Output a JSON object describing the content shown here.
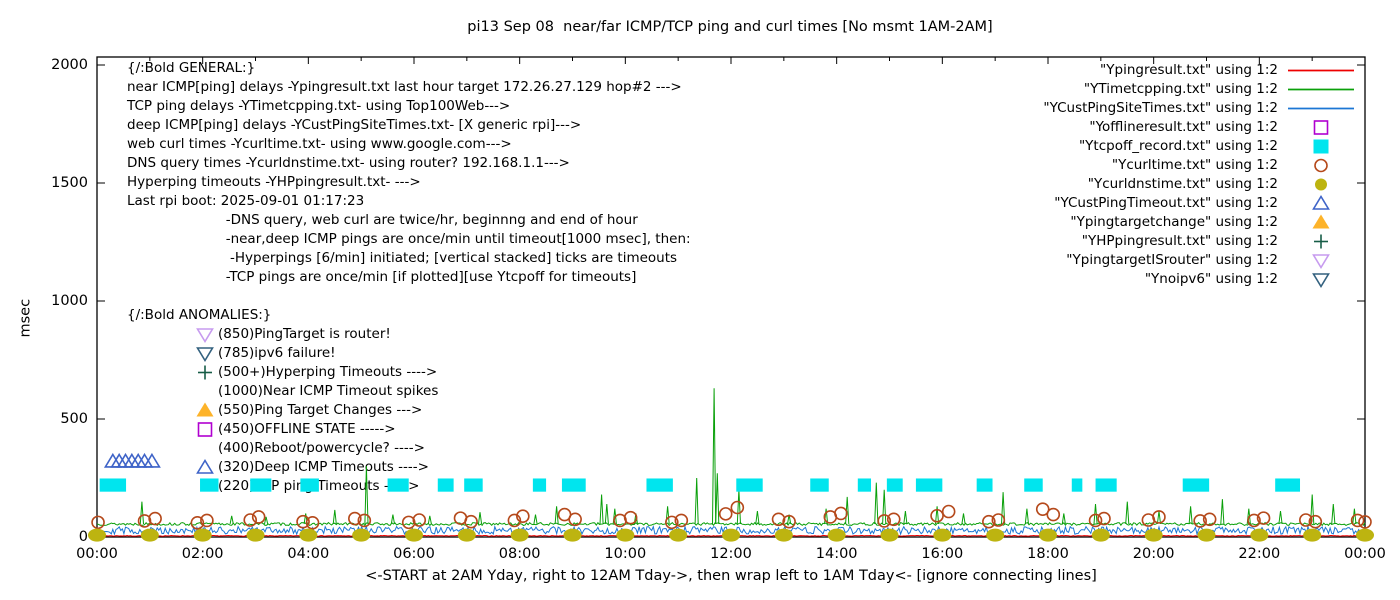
{
  "title": "pi13 Sep 08  near/far ICMP/TCP ping and curl times [No msmt 1AM-2AM]",
  "axes": {
    "y_label": "msec",
    "x_label": "<-START at 2AM Yday, right to 12AM Tday->, then wrap left to 1AM Tday<- [ignore connecting lines]",
    "y_ticks": [
      0,
      500,
      1000,
      1500,
      2000
    ],
    "x_ticks": [
      "00:00",
      "02:00",
      "04:00",
      "06:00",
      "08:00",
      "10:00",
      "12:00",
      "14:00",
      "16:00",
      "18:00",
      "20:00",
      "22:00",
      "00:00"
    ]
  },
  "general_block": {
    "lines": [
      "{/:Bold GENERAL:}",
      "near ICMP[ping] delays -Ypingresult.txt last hour target 172.26.27.129 hop#2 --->",
      "TCP ping delays -YTimetcpping.txt- using Top100Web--->",
      "deep ICMP[ping] delays -YCustPingSiteTimes.txt- [X generic rpi]--->",
      "web curl times -Ycurltime.txt- using www.google.com--->",
      "DNS query times -Ycurldnstime.txt- using router? 192.168.1.1--->",
      "Hyperping timeouts -YHPpingresult.txt- --->",
      "Last rpi boot: 2025-09-01 01:17:23",
      "                       -DNS query, web curl are twice/hr, beginnng and end of hour",
      "                       -near,deep ICMP pings are once/min until timeout[1000 msec], then:",
      "                        -Hyperpings [6/min] initiated; [vertical stacked] ticks are timeouts",
      "                       -TCP pings are once/min [if plotted][use Ytcpoff for timeouts]"
    ]
  },
  "anomalies_block": {
    "lines": [
      {
        "text": "{/:Bold ANOMALIES:}",
        "marker": null,
        "align": "block"
      },
      {
        "text": "(850)PingTarget is router!",
        "marker": "triangle-down-open",
        "marker_color": "#c79bef"
      },
      {
        "text": "(785)ipv6 failure!",
        "marker": "triangle-down-open",
        "marker_color": "#33617f"
      },
      {
        "text": "(500+)Hyperping Timeouts ---->",
        "marker": "plus",
        "marker_color": "#175d47"
      },
      {
        "text": "(1000)Near ICMP Timeout spikes",
        "marker": null
      },
      {
        "text": "(550)Ping Target Changes --->",
        "marker": "triangle-up-filled",
        "marker_color": "#fdb32a"
      },
      {
        "text": "(450)OFFLINE STATE ----->",
        "marker": "square-open",
        "marker_color": "#b000d0"
      },
      {
        "text": "(400)Reboot/powercycle? ---->",
        "marker": null
      },
      {
        "text": "(320)Deep ICMP Timeouts ---->",
        "marker": "triangle-up-open",
        "marker_color": "#3f64c8"
      },
      {
        "text": "(220)TCP ping Timeouts ----->",
        "marker": null
      }
    ]
  },
  "chart_data": {
    "type": "line",
    "title": "pi13 Sep 08  near/far ICMP/TCP ping and curl times [No msmt 1AM-2AM]",
    "xlabel": "<-START at 2AM Yday, right to 12AM Tday->, then wrap left to 1AM Tday<- [ignore connecting lines]",
    "ylabel": "msec",
    "xlim_hours": [
      0,
      24
    ],
    "ylim": [
      0,
      2000
    ],
    "grid": false,
    "legend_position": "top-right",
    "x_tick_labels": [
      "00:00",
      "02:00",
      "04:00",
      "06:00",
      "08:00",
      "10:00",
      "12:00",
      "14:00",
      "16:00",
      "18:00",
      "20:00",
      "22:00",
      "00:00"
    ],
    "y_tick_values": [
      0,
      500,
      1000,
      1500,
      2000
    ],
    "series": [
      {
        "name": "Ypingresult.txt",
        "legend": "\"Ypingresult.txt\" using 1:2",
        "style": "line",
        "marker": "line",
        "color": "#ee0000",
        "baseline_msec": 5,
        "noise_msec": 1.5,
        "seed": 7,
        "spikes": []
      },
      {
        "name": "YTimetcpping.txt",
        "legend": "\"YTimetcpping.txt\" using 1:2",
        "style": "line",
        "marker": "line",
        "color": "#0aa00a",
        "baseline_msec": 55,
        "noise_msec": 6,
        "seed": 13,
        "spikes": [
          [
            0.85,
            150
          ],
          [
            2.55,
            90
          ],
          [
            3.2,
            85
          ],
          [
            3.95,
            100
          ],
          [
            4.5,
            115
          ],
          [
            5.1,
            300
          ],
          [
            5.6,
            95
          ],
          [
            6.3,
            90
          ],
          [
            7.25,
            105
          ],
          [
            8.3,
            95
          ],
          [
            8.7,
            130
          ],
          [
            9.55,
            180
          ],
          [
            9.65,
            140
          ],
          [
            9.8,
            120
          ],
          [
            10.2,
            100
          ],
          [
            10.8,
            130
          ],
          [
            11.35,
            250
          ],
          [
            11.68,
            630
          ],
          [
            11.74,
            270
          ],
          [
            12.15,
            200
          ],
          [
            12.5,
            110
          ],
          [
            13.1,
            95
          ],
          [
            13.8,
            120
          ],
          [
            14.2,
            170
          ],
          [
            14.75,
            230
          ],
          [
            14.9,
            200
          ],
          [
            15.3,
            110
          ],
          [
            15.9,
            130
          ],
          [
            16.4,
            100
          ],
          [
            17.15,
            190
          ],
          [
            17.6,
            120
          ],
          [
            18.3,
            100
          ],
          [
            18.9,
            140
          ],
          [
            19.5,
            150
          ],
          [
            20.1,
            110
          ],
          [
            20.7,
            130
          ],
          [
            21.3,
            160
          ],
          [
            21.8,
            120
          ],
          [
            22.4,
            110
          ],
          [
            23.0,
            180
          ],
          [
            23.4,
            140
          ],
          [
            23.8,
            120
          ]
        ]
      },
      {
        "name": "YCustPingSiteTimes.txt",
        "legend": "\"YCustPingSiteTimes.txt\" using 1:2",
        "style": "line",
        "marker": "line",
        "color": "#1c76d4",
        "baseline_msec": 28,
        "noise_msec": 16,
        "seed": 29,
        "spikes": []
      },
      {
        "name": "Yofflineresult.txt",
        "legend": "\"Yofflineresult.txt\" using 1:2",
        "style": "points",
        "marker": "square-open",
        "color": "#b000d0",
        "points": []
      },
      {
        "name": "Ytcpoff_record.txt",
        "legend": "\"Ytcpoff_record.txt\" using 1:2",
        "style": "bars",
        "marker": "square-filled",
        "color": "#00e5ee",
        "bar_value_msec": 220,
        "bar_half_height_msec": 28,
        "segments_hours": [
          [
            0.05,
            0.55
          ],
          [
            1.95,
            2.3
          ],
          [
            2.9,
            3.3
          ],
          [
            3.85,
            4.2
          ],
          [
            5.5,
            5.9
          ],
          [
            6.45,
            6.75
          ],
          [
            6.95,
            7.3
          ],
          [
            8.25,
            8.5
          ],
          [
            8.8,
            9.25
          ],
          [
            10.4,
            10.9
          ],
          [
            12.1,
            12.6
          ],
          [
            13.5,
            13.85
          ],
          [
            14.4,
            14.65
          ],
          [
            14.95,
            15.25
          ],
          [
            15.5,
            16.0
          ],
          [
            16.65,
            16.95
          ],
          [
            17.55,
            17.9
          ],
          [
            18.45,
            18.65
          ],
          [
            18.9,
            19.3
          ],
          [
            20.55,
            21.05
          ],
          [
            22.3,
            22.77
          ]
        ]
      },
      {
        "name": "Ycurltime.txt",
        "legend": "\"Ycurltime.txt\" using 1:2",
        "style": "points",
        "marker": "circle-open",
        "color": "#b5491b",
        "points": [
          [
            0.02,
            62
          ],
          [
            0.9,
            68
          ],
          [
            1.1,
            78
          ],
          [
            1.9,
            60
          ],
          [
            2.08,
            70
          ],
          [
            2.9,
            72
          ],
          [
            3.06,
            85
          ],
          [
            3.9,
            65
          ],
          [
            4.08,
            60
          ],
          [
            4.88,
            78
          ],
          [
            5.06,
            70
          ],
          [
            5.9,
            62
          ],
          [
            6.1,
            72
          ],
          [
            6.88,
            80
          ],
          [
            7.08,
            65
          ],
          [
            7.9,
            70
          ],
          [
            8.06,
            88
          ],
          [
            8.85,
            95
          ],
          [
            9.05,
            75
          ],
          [
            9.9,
            70
          ],
          [
            10.1,
            82
          ],
          [
            10.88,
            62
          ],
          [
            11.06,
            70
          ],
          [
            11.9,
            98
          ],
          [
            12.12,
            125
          ],
          [
            12.9,
            75
          ],
          [
            13.1,
            65
          ],
          [
            13.88,
            85
          ],
          [
            14.08,
            100
          ],
          [
            14.9,
            68
          ],
          [
            15.08,
            75
          ],
          [
            15.9,
            90
          ],
          [
            16.12,
            108
          ],
          [
            16.88,
            65
          ],
          [
            17.06,
            72
          ],
          [
            17.9,
            118
          ],
          [
            18.1,
            95
          ],
          [
            18.9,
            70
          ],
          [
            19.06,
            78
          ],
          [
            19.9,
            72
          ],
          [
            20.1,
            85
          ],
          [
            20.88,
            68
          ],
          [
            21.06,
            75
          ],
          [
            21.9,
            70
          ],
          [
            22.08,
            80
          ],
          [
            22.88,
            72
          ],
          [
            23.06,
            65
          ],
          [
            23.86,
            70
          ],
          [
            24.0,
            64
          ]
        ]
      },
      {
        "name": "Ycurldnstime.txt",
        "legend": "\"Ycurldnstime.txt\" using 1:2",
        "style": "points",
        "marker": "circle-filled",
        "color": "#bdb410",
        "points": [
          [
            0,
            8
          ],
          [
            1,
            8
          ],
          [
            2,
            8
          ],
          [
            3,
            8
          ],
          [
            4,
            8
          ],
          [
            5,
            8
          ],
          [
            6,
            8
          ],
          [
            7,
            8
          ],
          [
            8,
            8
          ],
          [
            9,
            8
          ],
          [
            10,
            8
          ],
          [
            11,
            8
          ],
          [
            12,
            8
          ],
          [
            13,
            8
          ],
          [
            14,
            8
          ],
          [
            15,
            8
          ],
          [
            16,
            8
          ],
          [
            17,
            8
          ],
          [
            18,
            8
          ],
          [
            19,
            8
          ],
          [
            20,
            8
          ],
          [
            21,
            8
          ],
          [
            22,
            8
          ],
          [
            23,
            8
          ],
          [
            24,
            8
          ]
        ]
      },
      {
        "name": "YCustPingTimeout.txt",
        "legend": "\"YCustPingTimeout.txt\" using 1:2",
        "style": "points",
        "marker": "triangle-up-open",
        "color": "#3f64c8",
        "points": [
          [
            0.3,
            320
          ],
          [
            0.42,
            320
          ],
          [
            0.54,
            320
          ],
          [
            0.66,
            320
          ],
          [
            0.78,
            320
          ],
          [
            0.9,
            320
          ],
          [
            1.04,
            320
          ]
        ]
      },
      {
        "name": "Ypingtargetchange",
        "legend": "\"Ypingtargetchange\" using 1:2",
        "style": "points",
        "marker": "triangle-up-filled",
        "color": "#fdb32a",
        "points": []
      },
      {
        "name": "YHPpingresult.txt",
        "legend": "\"YHPpingresult.txt\" using 1:2",
        "style": "points",
        "marker": "plus",
        "color": "#175d47",
        "points": []
      },
      {
        "name": "YpingtargetISrouter",
        "legend": "\"YpingtargetISrouter\" using 1:2",
        "style": "points",
        "marker": "triangle-down-open",
        "color": "#c79bef",
        "points": []
      },
      {
        "name": "Ynoipv6",
        "legend": "\"Ynoipv6\" using 1:2",
        "style": "points",
        "marker": "triangle-down-open",
        "color": "#33617f",
        "points": []
      }
    ]
  },
  "colors": {
    "border": "#000000",
    "background": "#ffffff",
    "red_line": "#ee0000",
    "green_line": "#0aa00a",
    "blue_line": "#1c76d4",
    "magenta_square": "#b000d0",
    "cyan_bar": "#00e5ee",
    "brown_circle": "#b5491b",
    "olive_circle": "#bdb410",
    "royal_triangle": "#3f64c8",
    "orange_triangle": "#fdb32a",
    "dark_green_plus": "#175d47",
    "violet_triangle": "#c79bef",
    "steel_triangle": "#33617f"
  }
}
